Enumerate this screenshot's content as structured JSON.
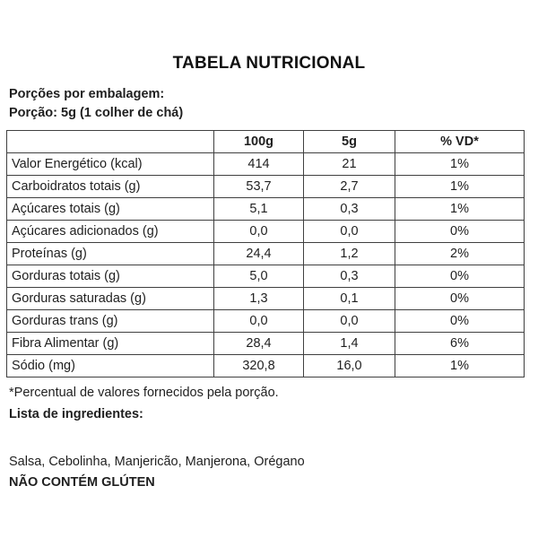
{
  "title": "TABELA NUTRICIONAL",
  "intro": {
    "servings_line": "Porções por embalagem:",
    "portion_line": "Porção: 5g (1 colher de chá)"
  },
  "table": {
    "columns": [
      "",
      "100g",
      "5g",
      "% VD*"
    ],
    "rows": [
      [
        "Valor Energético (kcal)",
        "414",
        "21",
        "1%"
      ],
      [
        "Carboidratos totais (g)",
        "53,7",
        "2,7",
        "1%"
      ],
      [
        "Açúcares totais (g)",
        "5,1",
        "0,3",
        "1%"
      ],
      [
        "Açúcares adicionados (g)",
        "0,0",
        "0,0",
        "0%"
      ],
      [
        "Proteínas (g)",
        "24,4",
        "1,2",
        "2%"
      ],
      [
        "Gorduras totais (g)",
        "5,0",
        "0,3",
        "0%"
      ],
      [
        "Gorduras saturadas (g)",
        "1,3",
        "0,1",
        "0%"
      ],
      [
        "Gorduras trans (g)",
        "0,0",
        "0,0",
        "0%"
      ],
      [
        "Fibra Alimentar (g)",
        "28,4",
        "1,4",
        "6%"
      ],
      [
        "Sódio (mg)",
        "320,8",
        "16,0",
        "1%"
      ]
    ]
  },
  "footnote": "*Percentual de valores fornecidos pela porção.",
  "ingredients_heading": "Lista de ingredientes:",
  "ingredients": "Salsa, Cebolinha, Manjericão, Manjerona, Orégano",
  "gluten_notice": "NÃO CONTÉM GLÚTEN",
  "colors": {
    "text": "#1f1f1f",
    "border": "#404040",
    "background": "#ffffff"
  }
}
